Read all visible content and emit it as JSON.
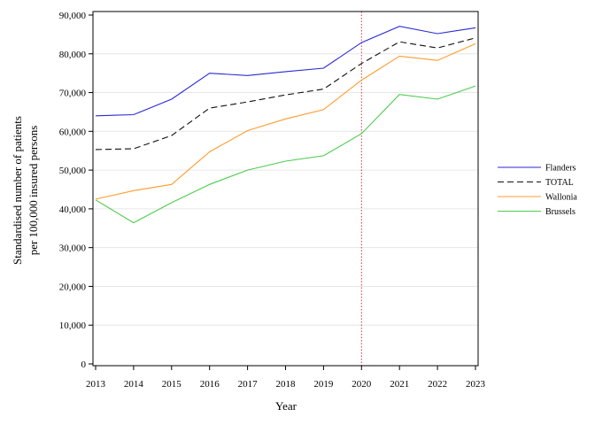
{
  "chart_data": {
    "type": "line",
    "xlabel": "Year",
    "ylabel_line1": "Standardised number of patients",
    "ylabel_line2": "per 100,000 insured persons",
    "x": [
      "2013",
      "2014",
      "2015",
      "2016",
      "2017",
      "2018",
      "2019",
      "2020",
      "2021",
      "2022",
      "2023"
    ],
    "ylim": [
      0,
      90000
    ],
    "yticks": [
      0,
      10000,
      20000,
      30000,
      40000,
      50000,
      60000,
      70000,
      80000,
      90000
    ],
    "ytick_labels": [
      "0",
      "10,000",
      "20,000",
      "30,000",
      "40,000",
      "50,000",
      "60,000",
      "70,000",
      "80,000",
      "90,000"
    ],
    "grid": "horizontal",
    "reference_line_x": "2020",
    "reference_line_color": "#cc3344",
    "legend_position": "right",
    "series": [
      {
        "name": "Flanders",
        "color": "#2a2ad4",
        "dash": "solid",
        "values": [
          64000,
          64300,
          68300,
          75000,
          74400,
          75400,
          76300,
          82900,
          87100,
          85200,
          86700
        ]
      },
      {
        "name": "TOTAL",
        "color": "#111111",
        "dash": "dashed",
        "values": [
          55300,
          55500,
          58900,
          66000,
          67600,
          69400,
          70900,
          77500,
          83100,
          81500,
          84100
        ]
      },
      {
        "name": "Wallonia",
        "color": "#ff9b2e",
        "dash": "solid",
        "values": [
          42500,
          44700,
          46300,
          54700,
          60200,
          63200,
          65600,
          73200,
          79400,
          78300,
          82600
        ]
      },
      {
        "name": "Brussels",
        "color": "#4dcc4d",
        "dash": "solid",
        "values": [
          42300,
          36400,
          41600,
          46300,
          50000,
          52300,
          53700,
          59400,
          69500,
          68300,
          71700
        ]
      }
    ]
  }
}
